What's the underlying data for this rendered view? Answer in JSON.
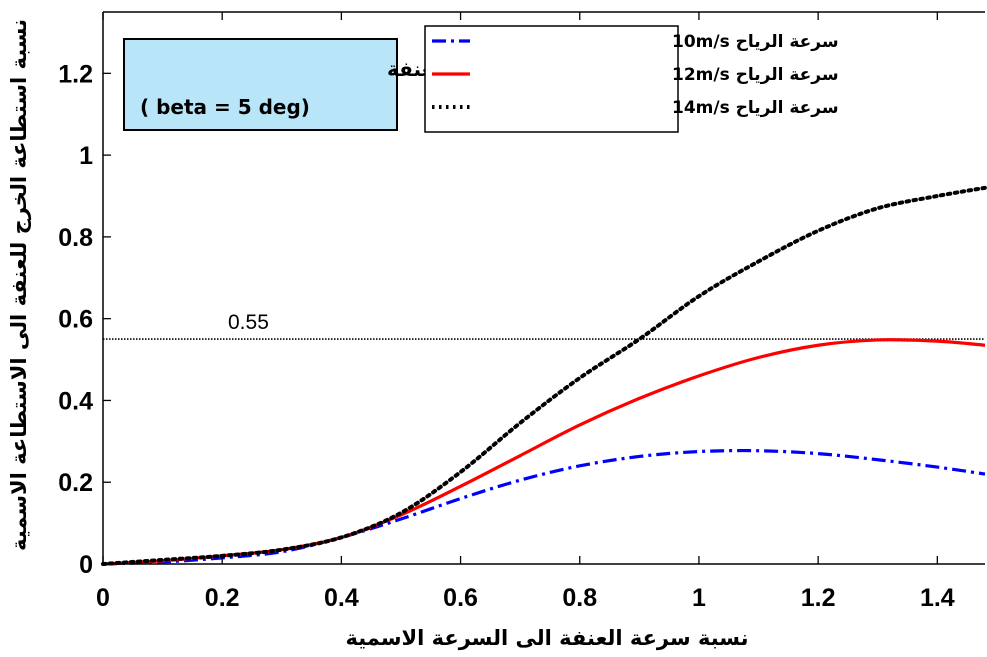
{
  "chart_data": {
    "type": "line",
    "xlabel": "نسبة سرعة العنفة الى السرعة الاسمية",
    "ylabel": "نسبة استطاعة الخرج للعنفة الى الاستطاعة الاسمية",
    "xlim": [
      0,
      1.48
    ],
    "ylim": [
      0,
      1.35
    ],
    "x_ticks": [
      "0",
      "0.2",
      "0.4",
      "0.6",
      "0.8",
      "1",
      "1.2",
      "1.4"
    ],
    "y_ticks": [
      "0",
      "0.2",
      "0.4",
      "0.6",
      "0.8",
      "1",
      "1.2"
    ],
    "grid": false,
    "legend_position": "top-right",
    "annotation": {
      "line1": "زاوية ميل شفرة العنفة",
      "line2": "( beta = 5 deg)",
      "background": "#b8e6f8"
    },
    "reference_line": {
      "y": 0.55,
      "label": "0.55",
      "style": "dotted",
      "color": "#000000"
    },
    "series": [
      {
        "name": "سرعة الرياح 10m/s",
        "color": "#0000ff",
        "style": "dashdot",
        "x": [
          0,
          0.1,
          0.2,
          0.3,
          0.4,
          0.5,
          0.6,
          0.7,
          0.8,
          0.9,
          1.0,
          1.1,
          1.2,
          1.3,
          1.4,
          1.48
        ],
        "y": [
          0,
          0.005,
          0.015,
          0.03,
          0.065,
          0.11,
          0.16,
          0.205,
          0.24,
          0.263,
          0.275,
          0.277,
          0.27,
          0.255,
          0.237,
          0.22
        ]
      },
      {
        "name": "سرعة الرياح 12m/s",
        "color": "#ff0000",
        "style": "solid",
        "x": [
          0,
          0.1,
          0.2,
          0.3,
          0.4,
          0.5,
          0.6,
          0.7,
          0.8,
          0.9,
          1.0,
          1.1,
          1.2,
          1.3,
          1.4,
          1.48
        ],
        "y": [
          0,
          0.008,
          0.02,
          0.035,
          0.065,
          0.12,
          0.19,
          0.265,
          0.34,
          0.405,
          0.46,
          0.505,
          0.535,
          0.548,
          0.545,
          0.535
        ]
      },
      {
        "name": "سرعة الرياح 14m/s",
        "color": "#000000",
        "style": "dotted",
        "x": [
          0,
          0.1,
          0.2,
          0.3,
          0.4,
          0.5,
          0.6,
          0.7,
          0.8,
          0.9,
          1.0,
          1.1,
          1.2,
          1.3,
          1.4,
          1.48
        ],
        "y": [
          0,
          0.01,
          0.02,
          0.035,
          0.065,
          0.125,
          0.225,
          0.345,
          0.455,
          0.55,
          0.655,
          0.74,
          0.815,
          0.87,
          0.9,
          0.92
        ]
      }
    ]
  }
}
